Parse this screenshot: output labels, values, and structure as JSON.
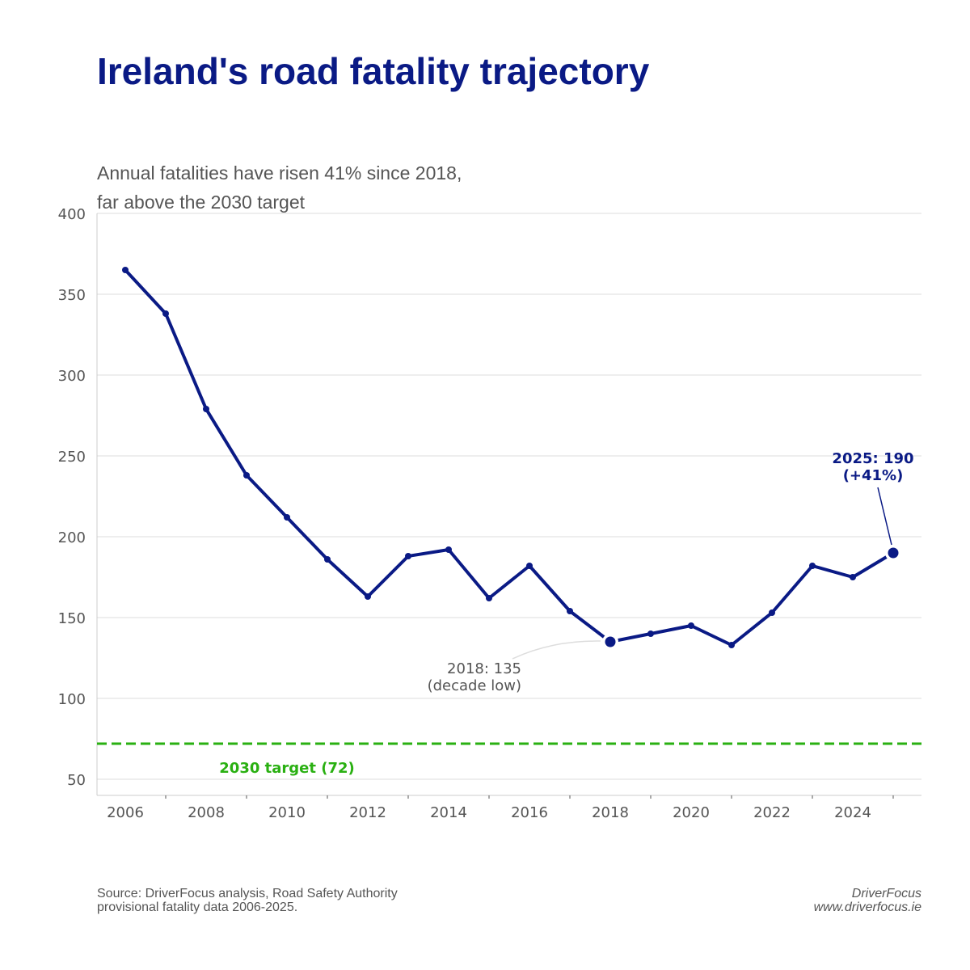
{
  "header": {
    "title": "Ireland's road fatality trajectory",
    "subtitle_lines": [
      "Annual fatalities have risen 41% since 2018,",
      "far above the 2030 target"
    ]
  },
  "chart_data": {
    "type": "line",
    "title": "Ireland's road fatality trajectory",
    "subtitle": "Annual fatalities have risen 41% since 2018, far above the 2030 target",
    "xlabel": "",
    "ylabel": "",
    "x": [
      2006,
      2007,
      2008,
      2009,
      2010,
      2011,
      2012,
      2013,
      2014,
      2015,
      2016,
      2017,
      2018,
      2019,
      2020,
      2021,
      2022,
      2023,
      2024,
      2025
    ],
    "series": [
      {
        "values": [
          365,
          338,
          279,
          238,
          212,
          186,
          163,
          188,
          192,
          162,
          182,
          154,
          135,
          140,
          145,
          133,
          153,
          182,
          175,
          190
        ],
        "color": "#0a1a85"
      }
    ],
    "xlim": [
      2005.3,
      2025.7
    ],
    "ylim": [
      40,
      400
    ],
    "yticks": [
      50,
      100,
      150,
      200,
      250,
      300,
      350,
      400
    ],
    "xticks_labeled": [
      2006,
      2008,
      2010,
      2012,
      2014,
      2016,
      2018,
      2020,
      2022,
      2024
    ],
    "xticks_minor": [
      2007,
      2009,
      2011,
      2013,
      2015,
      2017,
      2019,
      2021,
      2023,
      2025
    ],
    "grid": "horizontal",
    "target": {
      "value": 72,
      "label": "2030 target (72)",
      "color": "#2ab012",
      "style": "dashed"
    },
    "annotations": [
      {
        "x": 2018,
        "y": 135,
        "lines": [
          "2018: 135",
          "(decade low)"
        ]
      },
      {
        "x": 2025,
        "y": 190,
        "lines": [
          "2025: 190",
          "(+41%)"
        ]
      }
    ]
  },
  "footer": {
    "source_lines": [
      "Source: DriverFocus analysis, Road Safety Authority",
      "provisional fatality data 2006-2025."
    ],
    "brand": "DriverFocus",
    "url": "www.driverfocus.ie"
  },
  "colors": {
    "title": "#0a1a85",
    "line": "#0a1a85",
    "target": "#2ab012",
    "grid": "#dddddd",
    "text": "#555555"
  }
}
